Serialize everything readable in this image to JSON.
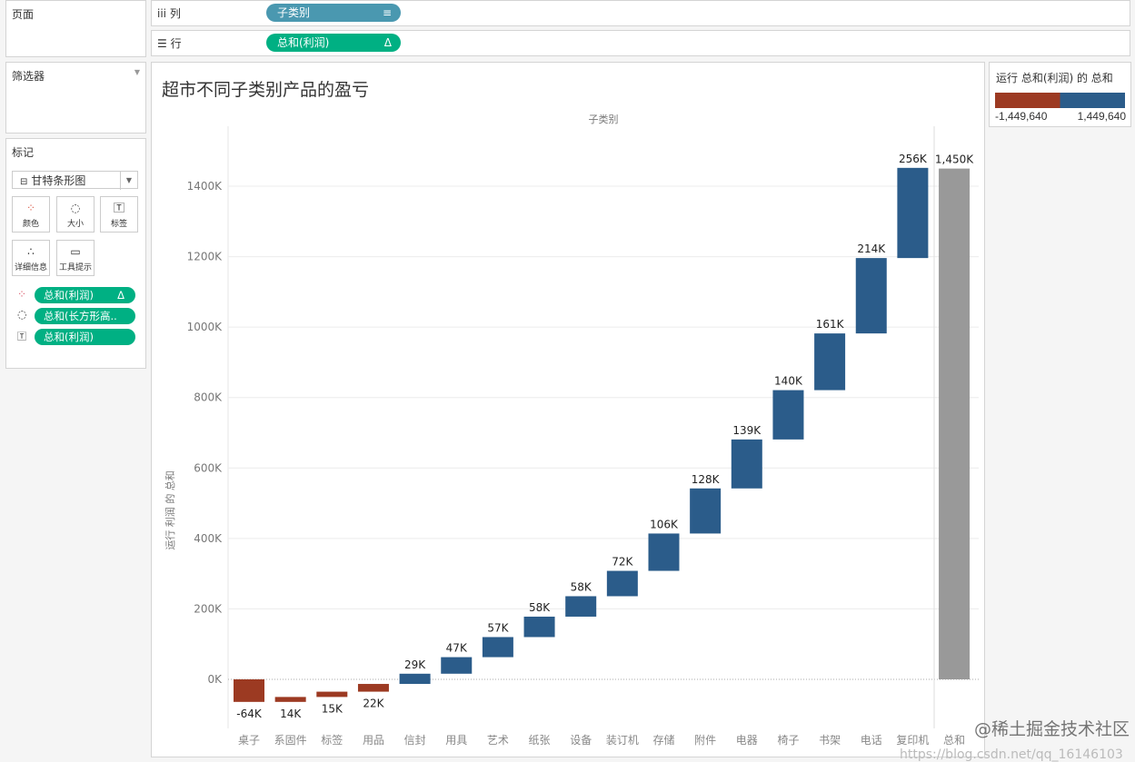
{
  "pages": {
    "title": "页面"
  },
  "filters": {
    "title": "筛选器"
  },
  "marks": {
    "title": "标记",
    "type": "甘特条形图",
    "buttons": [
      {
        "label": "颜色",
        "icon": "color-dots-icon"
      },
      {
        "label": "大小",
        "icon": "size-icon"
      },
      {
        "label": "标签",
        "icon": "label-icon"
      },
      {
        "label": "详细信息",
        "icon": "detail-icon"
      },
      {
        "label": "工具提示",
        "icon": "tooltip-icon"
      }
    ],
    "pills": [
      {
        "label": "总和(利润)",
        "suffix": "Δ",
        "icon": "color-dots-icon"
      },
      {
        "label": "总和(长方形高..",
        "icon": "size-icon"
      },
      {
        "label": "总和(利润)",
        "icon": "label-icon"
      }
    ]
  },
  "shelves": {
    "columns": {
      "label": "列",
      "pill": "子类别",
      "color": "#4a98b0"
    },
    "rows": {
      "label": "行",
      "pill": "总和(利润)",
      "suffix": "Δ",
      "color": "#00b083"
    }
  },
  "legend": {
    "title": "运行 总和(利润) 的 总和",
    "min": "-1,449,640",
    "max": "1,449,640",
    "colors": [
      "#9c3a22",
      "#2b5c8a"
    ]
  },
  "watermark": {
    "text": "@稀土掘金技术社区",
    "url": "https://blog.csdn.net/qq_16146103"
  },
  "chart_data": {
    "type": "waterfall",
    "title": "超市不同子类别产品的盈亏",
    "xlabel": "子类别",
    "ylabel": "运行 利润 的 总和",
    "categories": [
      "桌子",
      "系固件",
      "标签",
      "用品",
      "信封",
      "用具",
      "艺术",
      "纸张",
      "设备",
      "装订机",
      "存储",
      "附件",
      "电器",
      "椅子",
      "书架",
      "电话",
      "复印机"
    ],
    "values": [
      -64,
      14,
      15,
      22,
      29,
      47,
      57,
      58,
      58,
      72,
      106,
      128,
      139,
      140,
      161,
      214,
      256
    ],
    "labels": [
      "-64K",
      "14K",
      "15K",
      "22K",
      "29K",
      "47K",
      "57K",
      "58K",
      "58K",
      "72K",
      "106K",
      "128K",
      "139K",
      "140K",
      "161K",
      "214K",
      "256K"
    ],
    "total": {
      "category": "总和",
      "value": 1450,
      "label": "1,450K"
    },
    "unit": "K",
    "ylim": [
      -150,
      1500
    ],
    "yticks": [
      {
        "v": 0,
        "l": "0K"
      },
      {
        "v": 200,
        "l": "200K"
      },
      {
        "v": 400,
        "l": "400K"
      },
      {
        "v": 600,
        "l": "600K"
      },
      {
        "v": 800,
        "l": "800K"
      },
      {
        "v": 1000,
        "l": "1000K"
      },
      {
        "v": 1200,
        "l": "1200K"
      },
      {
        "v": 1400,
        "l": "1400K"
      }
    ],
    "grid": true,
    "colors": {
      "negative": "#9c3a22",
      "positive": "#2b5c8a",
      "total": "#999999"
    }
  }
}
